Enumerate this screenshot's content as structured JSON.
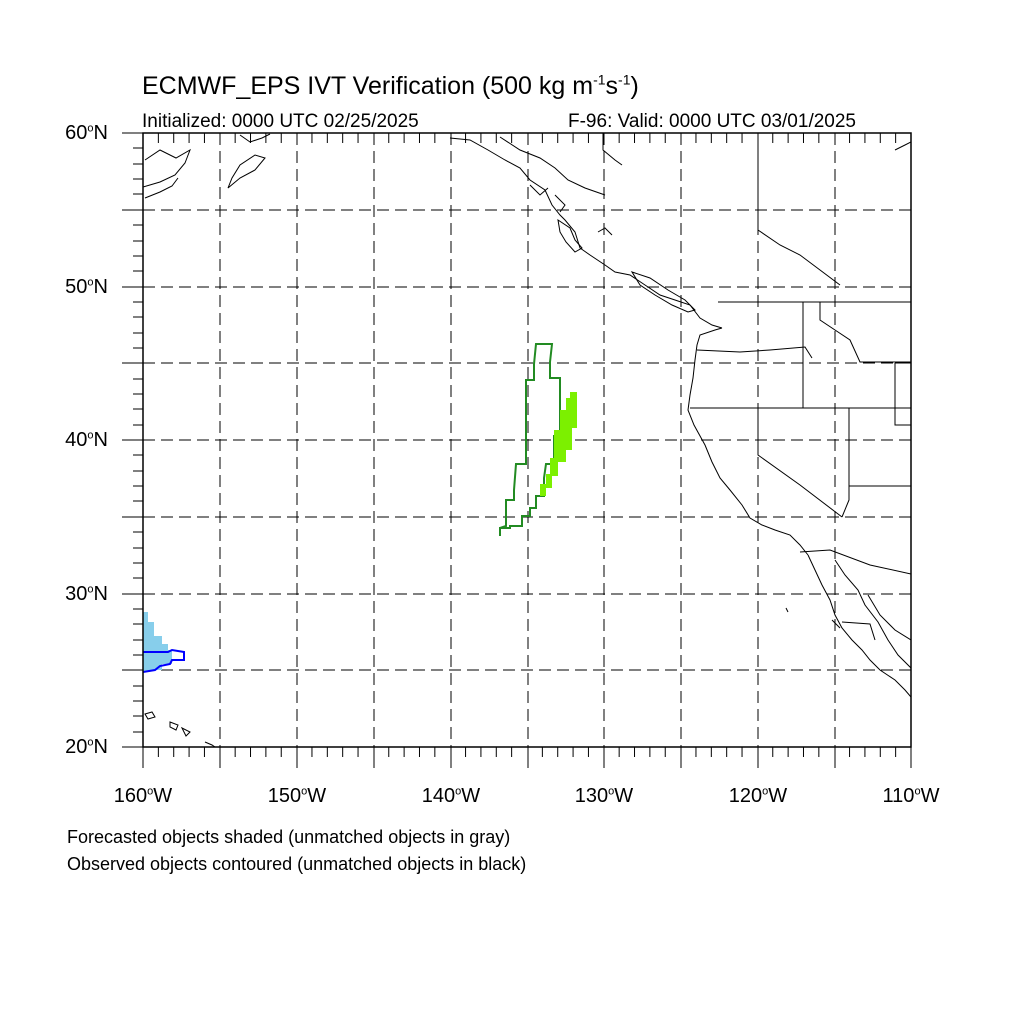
{
  "title": {
    "prefix": "ECMWF_EPS IVT Verification (500 kg m",
    "exp1": "-1",
    "mid": "s",
    "exp2": "-1",
    "suffix": ")"
  },
  "initialized": "Initialized: 0000 UTC 02/25/2025",
  "valid": "F-96: Valid: 0000 UTC 03/01/2025",
  "lat_labels": [
    {
      "value": "60",
      "suffix": "N"
    },
    {
      "value": "50",
      "suffix": "N"
    },
    {
      "value": "40",
      "suffix": "N"
    },
    {
      "value": "30",
      "suffix": "N"
    },
    {
      "value": "20",
      "suffix": "N"
    }
  ],
  "lon_labels": [
    {
      "value": "160",
      "suffix": "W"
    },
    {
      "value": "150",
      "suffix": "W"
    },
    {
      "value": "140",
      "suffix": "W"
    },
    {
      "value": "130",
      "suffix": "W"
    },
    {
      "value": "120",
      "suffix": "W"
    },
    {
      "value": "110",
      "suffix": "W"
    }
  ],
  "degree_symbol": "o",
  "footnotes": {
    "line1": "Forecasted objects shaded (unmatched objects in gray)",
    "line2": "Observed objects contoured (unmatched objects in black)"
  },
  "map": {
    "lon_range": [
      -160,
      -110
    ],
    "lat_range": [
      20,
      60
    ],
    "grid_interval_deg": 5,
    "grid_style": "dashed",
    "objects": [
      {
        "kind": "forecast-shaded",
        "color": "#7cf000",
        "region": "northeast Pacific near 37-43N, 131-134W"
      },
      {
        "kind": "observed-contour",
        "color": "#228b22",
        "region": "northeast Pacific near 34-46N, 131-137W"
      },
      {
        "kind": "forecast-shaded",
        "color": "#87ceeb",
        "region": "near 25-29N, 157-160W"
      },
      {
        "kind": "observed-contour",
        "color": "#0000ff",
        "region": "near 25-26N, 157-160W"
      }
    ]
  }
}
